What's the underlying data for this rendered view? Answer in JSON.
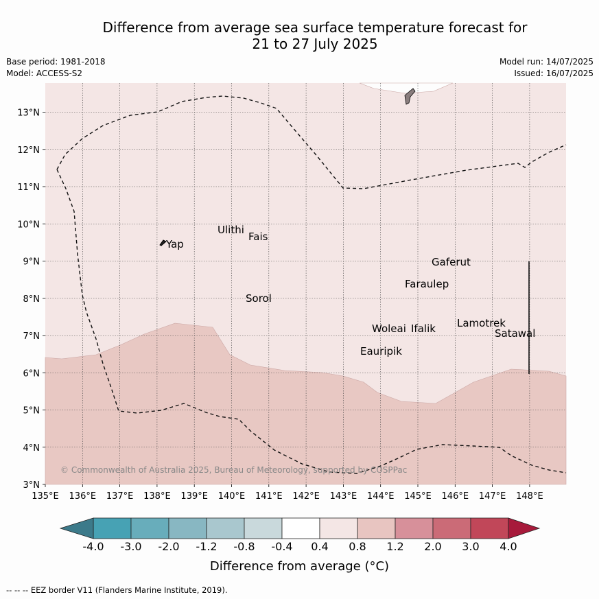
{
  "title_line1": "Difference from average sea surface temperature forecast for",
  "title_line2": "21 to 27 July 2025",
  "base_period": "Base period: 1981-2018",
  "model": "Model: ACCESS-S2",
  "model_run": "Model run: 14/07/2025",
  "issued": "Issued: 16/07/2025",
  "copyright": "© Commonwealth of Australia 2025, Bureau of Meteorology, supported by COSPPac",
  "lon_ticks": [
    "135°E",
    "136°E",
    "137°E",
    "138°E",
    "139°E",
    "140°E",
    "141°E",
    "142°E",
    "143°E",
    "144°E",
    "145°E",
    "146°E",
    "147°E",
    "148°E"
  ],
  "lat_ticks": [
    "3°N",
    "4°N",
    "5°N",
    "6°N",
    "7°N",
    "8°N",
    "9°N",
    "10°N",
    "11°N",
    "12°N",
    "13°N"
  ],
  "places": {
    "yap": "Yap",
    "ulithi": "Ulithi",
    "fais": "Fais",
    "sorol": "Sorol",
    "gaferut": "Gaferut",
    "faraulep": "Faraulep",
    "woleai": "Woleai",
    "ifalik": "Ifalik",
    "lamotrek": "Lamotrek",
    "satawal": "Satawal",
    "eauripik": "Eauripik"
  },
  "colorbar": {
    "ticks": [
      "-4.0",
      "-3.0",
      "-2.0",
      "-1.2",
      "-0.8",
      "-0.4",
      "0.4",
      "0.8",
      "1.2",
      "2.0",
      "3.0",
      "4.0"
    ],
    "colors": [
      "#47a2b4",
      "#68adbb",
      "#88b7c2",
      "#a9c7ce",
      "#c9d9dc",
      "#ffffff",
      "#f4e6e5",
      "#e8c5c1",
      "#d7909a",
      "#cb6b77",
      "#c14759"
    ],
    "under_color": "#3c7a8a",
    "over_color": "#a71a3b",
    "label": "Difference from average (°C)"
  },
  "footnote": "--  --  -- EEZ border V11 (Flanders Marine Institute, 2019).",
  "map_colors": {
    "band_04_08": "#f4e6e5",
    "band_08_12": "#e8c8c3"
  }
}
